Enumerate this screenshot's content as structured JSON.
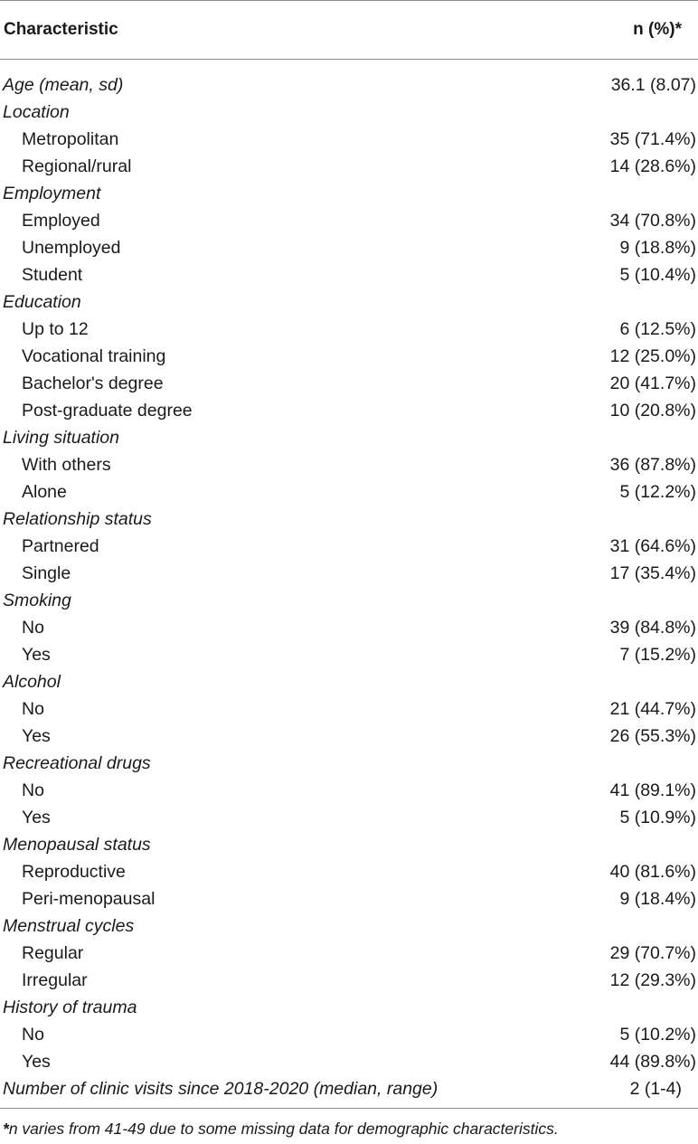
{
  "header": {
    "characteristic": "Characteristic",
    "value": "n (%)*"
  },
  "rows": [
    {
      "type": "category",
      "label": "Age (mean, sd)",
      "value": "36.1 (8.07)"
    },
    {
      "type": "category",
      "label": "Location",
      "value": ""
    },
    {
      "type": "sub",
      "label": "Metropolitan",
      "value": "35 (71.4%)"
    },
    {
      "type": "sub",
      "label": "Regional/rural",
      "value": "14 (28.6%)"
    },
    {
      "type": "category",
      "label": "Employment",
      "value": ""
    },
    {
      "type": "sub",
      "label": "Employed",
      "value": "34 (70.8%)"
    },
    {
      "type": "sub",
      "label": "Unemployed",
      "value": "9 (18.8%)"
    },
    {
      "type": "sub",
      "label": "Student",
      "value": "5 (10.4%)"
    },
    {
      "type": "category",
      "label": "Education",
      "value": ""
    },
    {
      "type": "sub",
      "label": "Up to 12",
      "value": "6 (12.5%)"
    },
    {
      "type": "sub",
      "label": "Vocational training",
      "value": "12 (25.0%)"
    },
    {
      "type": "sub",
      "label": "Bachelor's degree",
      "value": "20 (41.7%)"
    },
    {
      "type": "sub",
      "label": "Post-graduate degree",
      "value": "10 (20.8%)"
    },
    {
      "type": "category",
      "label": "Living situation",
      "value": ""
    },
    {
      "type": "sub",
      "label": "With others",
      "value": "36 (87.8%)"
    },
    {
      "type": "sub",
      "label": "Alone",
      "value": "5 (12.2%)"
    },
    {
      "type": "category",
      "label": "Relationship status",
      "value": ""
    },
    {
      "type": "sub",
      "label": "Partnered",
      "value": "31 (64.6%)"
    },
    {
      "type": "sub",
      "label": "Single",
      "value": "17 (35.4%)"
    },
    {
      "type": "category",
      "label": "Smoking",
      "value": ""
    },
    {
      "type": "sub",
      "label": "No",
      "value": "39 (84.8%)"
    },
    {
      "type": "sub",
      "label": "Yes",
      "value": "7 (15.2%)"
    },
    {
      "type": "category",
      "label": "Alcohol",
      "value": ""
    },
    {
      "type": "sub",
      "label": "No",
      "value": "21 (44.7%)"
    },
    {
      "type": "sub",
      "label": "Yes",
      "value": "26 (55.3%)"
    },
    {
      "type": "category",
      "label": "Recreational drugs",
      "value": ""
    },
    {
      "type": "sub",
      "label": "No",
      "value": "41 (89.1%)"
    },
    {
      "type": "sub",
      "label": "Yes",
      "value": "5 (10.9%)"
    },
    {
      "type": "category",
      "label": "Menopausal status",
      "value": ""
    },
    {
      "type": "sub",
      "label": "Reproductive",
      "value": "40 (81.6%)"
    },
    {
      "type": "sub",
      "label": "Peri-menopausal",
      "value": "9 (18.4%)"
    },
    {
      "type": "category",
      "label": "Menstrual cycles",
      "value": ""
    },
    {
      "type": "sub",
      "label": "Regular",
      "value": "29 (70.7%)"
    },
    {
      "type": "sub",
      "label": "Irregular",
      "value": "12 (29.3%)"
    },
    {
      "type": "category",
      "label": "History of trauma",
      "value": ""
    },
    {
      "type": "sub",
      "label": "No",
      "value": "5 (10.2%)"
    },
    {
      "type": "sub",
      "label": "Yes",
      "value": "44 (89.8%)"
    },
    {
      "type": "category",
      "label": "Number of clinic visits since 2018-2020 (median, range)",
      "value": "2 (1-4)",
      "center": true
    }
  ],
  "footnote": {
    "mark": "*",
    "text": "n varies from 41-49 due to some missing data for demographic characteristics."
  }
}
